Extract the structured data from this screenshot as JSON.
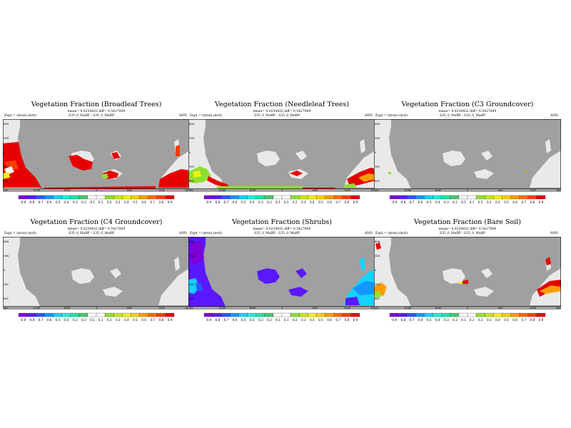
{
  "map_shared": {
    "lat_labels": [
      "60N",
      "30N",
      "0",
      "30S",
      "60S"
    ],
    "lon_labels": [
      "180",
      "120W",
      "60W",
      "0",
      "60E",
      "120E",
      "180"
    ],
    "colorbar_ticks": [
      "-0.9",
      "-0.8",
      "-0.7",
      "-0.6",
      "-0.5",
      "-0.4",
      "-0.3",
      "-0.2",
      "-0.1",
      "0.1",
      "0.2",
      "0.3",
      "0.4",
      "0.5",
      "0.6",
      "0.7",
      "0.8",
      "0.9"
    ],
    "colorbar_colors": [
      "#7d00d6",
      "#5a18ff",
      "#2a57ff",
      "#1596ff",
      "#16d0ff",
      "#18f0d8",
      "#1be6a8",
      "#44c86e",
      "#fcfcfc",
      "#fcfcfc",
      "#8ee030",
      "#c8e61e",
      "#f2f018",
      "#ffcf00",
      "#ff9d00",
      "#ff6a00",
      "#ff3b00",
      "#e60000"
    ],
    "ocean_color": "#a0a0a0",
    "land_color": "#e9e9e9",
    "experiment": "Expt = ($run)-($ctl)",
    "season": "ANN"
  },
  "panels": [
    {
      "title": "Vegetation Fraction (Broadleaf Trees)",
      "stats": "mean= 0.0234432 diff= 0.5427009",
      "run": "S35_0_MaBP - S35_0_MaBP"
    },
    {
      "title": "Vegetation Fraction (Needleleaf Trees)",
      "stats": "mean= 0.0234432 diff= 0.5427009",
      "run": "S35_0_MaBP - S35_0_MaBP"
    },
    {
      "title": "Vegetation Fraction (C3 Groundcover)",
      "stats": "mean= 0.0234432 diff= 0.5427009",
      "run": "S35_0_MaBP - S35_0_MaBP"
    },
    {
      "title": "Vegetation Fraction (C4 Groundcover)",
      "stats": "mean= 0.0234432 diff= 0.5427009",
      "run": "S35_0_MaBP - S35_0_MaBP"
    },
    {
      "title": "Vegetation Fraction (Shrubs)",
      "stats": "mean= 0.0234432 diff= 0.5427009",
      "run": "S35_0_MaBP - S35_0_MaBP"
    },
    {
      "title": "Vegetation Fraction (Bare Soil)",
      "stats": "mean= 0.0234432 diff= 0.5427009",
      "run": "S35_0_MaBP - S35_0_MaBP"
    }
  ]
}
